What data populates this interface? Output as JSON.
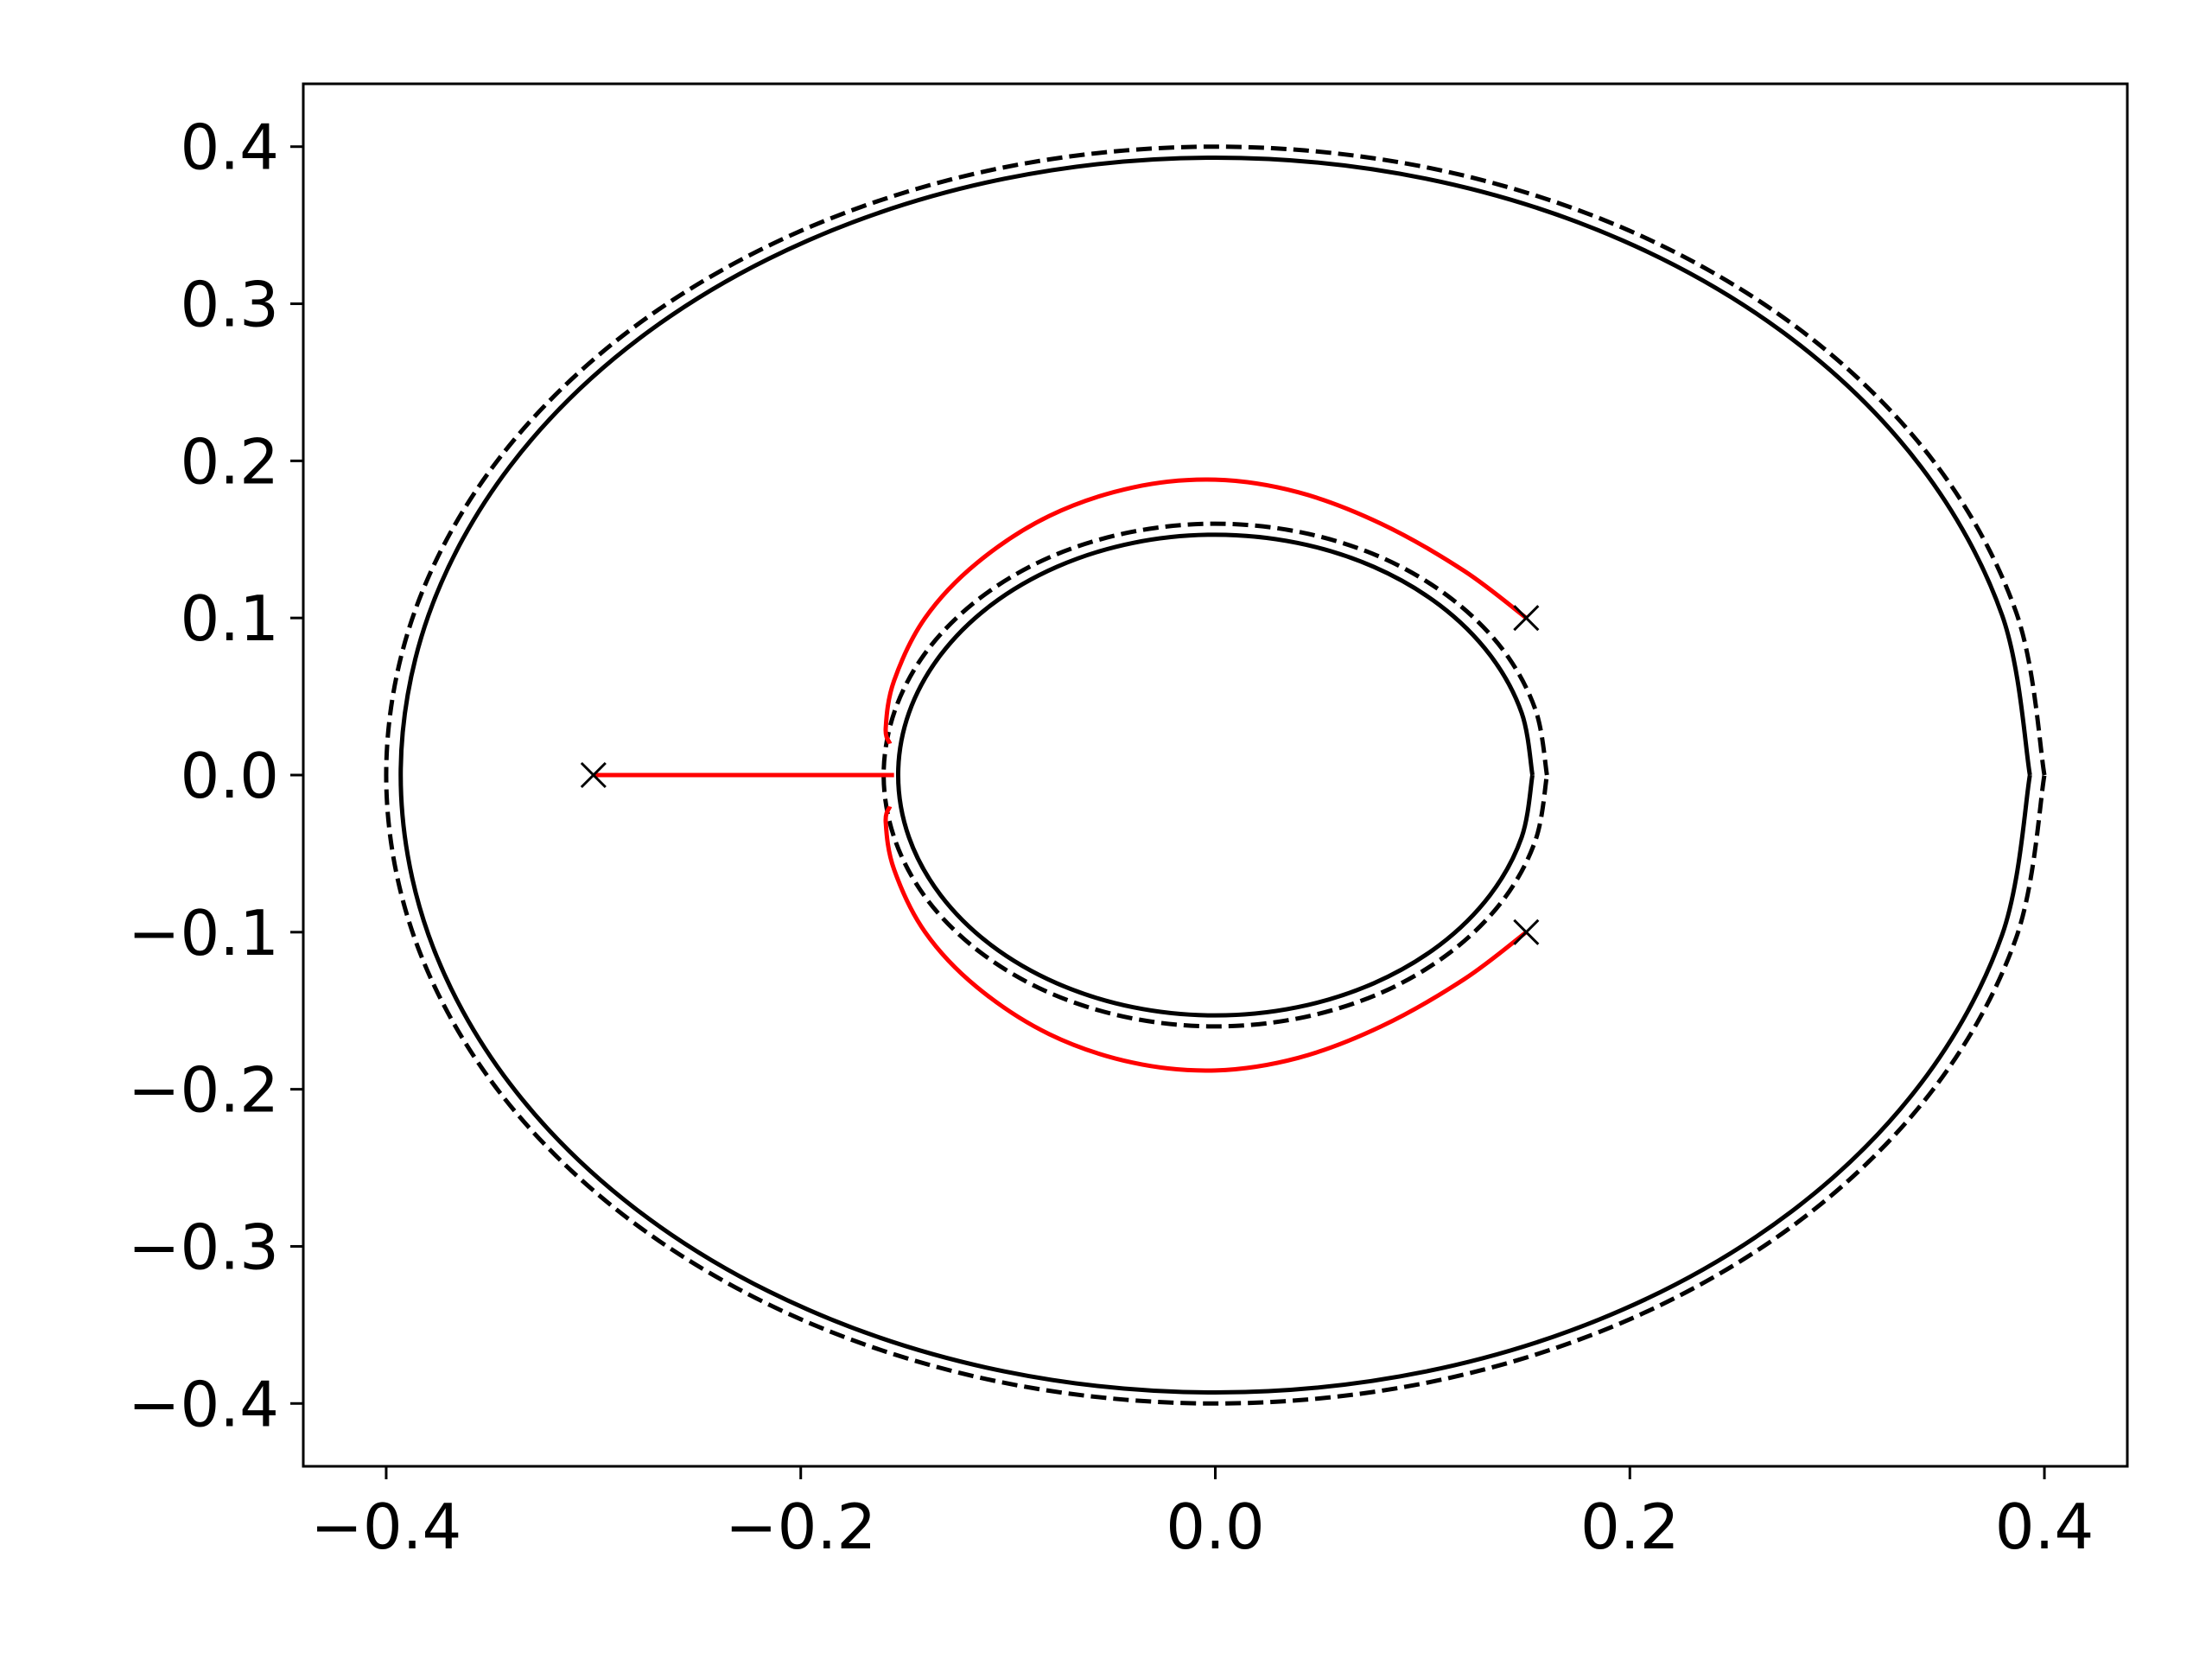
{
  "chart_data": {
    "type": "line",
    "xlim": [
      -0.44,
      0.44
    ],
    "ylim": [
      -0.44,
      0.44
    ],
    "xticks": [
      {
        "value": -0.4,
        "label": "−0.4"
      },
      {
        "value": -0.2,
        "label": "−0.2"
      },
      {
        "value": 0,
        "label": "0.0"
      },
      0.2,
      0.4
    ],
    "yticks": [
      {
        "value": -0.4,
        "label": "−0.4"
      },
      {
        "value": -0.3,
        "label": "−0.3"
      },
      {
        "value": -0.2,
        "label": "−0.2"
      },
      {
        "value": -0.1,
        "label": "−0.1"
      },
      {
        "value": 0,
        "label": "0.0"
      },
      0.1,
      0.2,
      0.3,
      0.4
    ],
    "series": [
      {
        "color": "#000000",
        "linestyle": "dashed",
        "x": [
          0.4,
          0.3864,
          0.3464,
          0.2828,
          0.2,
          0.1035,
          0,
          -0.1035,
          -0.2,
          -0.2828,
          -0.3464,
          -0.3864,
          -0.4,
          -0.3864,
          -0.3464,
          -0.2828,
          -0.2,
          -0.1035,
          0,
          0.1035,
          0.2,
          0.2828,
          0.3464,
          0.3864,
          0.4
        ],
        "values": [
          0,
          0.1035,
          0.2,
          0.2828,
          0.3464,
          0.3864,
          0.4,
          0.3864,
          0.3464,
          0.2828,
          0.2,
          0.1035,
          0,
          -0.1035,
          -0.2,
          -0.2828,
          -0.3464,
          -0.3864,
          -0.4,
          -0.3864,
          -0.3464,
          -0.2828,
          -0.2,
          -0.1035,
          0
        ]
      },
      {
        "color": "#000000",
        "linestyle": "solid",
        "x": [
          0.393,
          0.3796,
          0.3403,
          0.2779,
          0.1965,
          0.1017,
          0,
          -0.1017,
          -0.1965,
          -0.2779,
          -0.3403,
          -0.3796,
          -0.393,
          -0.3796,
          -0.3403,
          -0.2779,
          -0.1965,
          -0.1017,
          0,
          0.1017,
          0.1965,
          0.2779,
          0.3403,
          0.3796,
          0.393
        ],
        "values": [
          0,
          0.1017,
          0.1965,
          0.2779,
          0.3403,
          0.3796,
          0.393,
          0.3796,
          0.3403,
          0.2779,
          0.1965,
          0.1017,
          0,
          -0.1017,
          -0.1965,
          -0.2779,
          -0.3403,
          -0.3796,
          -0.393,
          -0.3796,
          -0.3403,
          -0.2779,
          -0.1965,
          -0.1017,
          0
        ]
      },
      {
        "color": "#000000",
        "linestyle": "dashed",
        "x": [
          0.16,
          0.1545,
          0.1386,
          0.1131,
          0.08,
          0.0414,
          0,
          -0.0414,
          -0.08,
          -0.1131,
          -0.1386,
          -0.1545,
          -0.16,
          -0.1545,
          -0.1386,
          -0.1131,
          -0.08,
          -0.0414,
          0,
          0.0414,
          0.08,
          0.1131,
          0.1386,
          0.1545,
          0.16
        ],
        "values": [
          0,
          0.0414,
          0.08,
          0.1131,
          0.1386,
          0.1545,
          0.16,
          0.1545,
          0.1386,
          0.1131,
          0.08,
          0.0414,
          0,
          -0.0414,
          -0.08,
          -0.1131,
          -0.1386,
          -0.1545,
          -0.16,
          -0.1545,
          -0.1386,
          -0.1131,
          -0.08,
          -0.0414,
          0
        ]
      },
      {
        "color": "#000000",
        "linestyle": "solid",
        "x": [
          0.153,
          0.1478,
          0.1325,
          0.1082,
          0.0765,
          0.0396,
          0,
          -0.0396,
          -0.0765,
          -0.1082,
          -0.1325,
          -0.1478,
          -0.153,
          -0.1478,
          -0.1325,
          -0.1082,
          -0.0765,
          -0.0396,
          0,
          0.0396,
          0.0765,
          0.1082,
          0.1325,
          0.1478,
          0.153
        ],
        "values": [
          0,
          0.0396,
          0.0765,
          0.1082,
          0.1325,
          0.1478,
          0.153,
          0.1478,
          0.1325,
          0.1082,
          0.0765,
          0.0396,
          0,
          -0.0396,
          -0.0765,
          -0.1082,
          -0.1325,
          -0.1478,
          -0.153,
          -0.1478,
          -0.1325,
          -0.1082,
          -0.0765,
          -0.0396,
          0
        ]
      },
      {
        "color": "#ff0000",
        "linestyle": "solid",
        "x": [
          0.15,
          0.12,
          0.08,
          0.04,
          0,
          -0.04,
          -0.08,
          -0.115,
          -0.14,
          -0.155,
          -0.159,
          -0.157
        ],
        "values": [
          0.1,
          0.13,
          0.16,
          0.18,
          0.188,
          0.183,
          0.165,
          0.135,
          0.1,
          0.06,
          0.03,
          0.02
        ]
      },
      {
        "color": "#ff0000",
        "linestyle": "solid",
        "x": [
          0.15,
          0.12,
          0.08,
          0.04,
          0,
          -0.04,
          -0.08,
          -0.115,
          -0.14,
          -0.155,
          -0.159,
          -0.157
        ],
        "values": [
          -0.1,
          -0.13,
          -0.16,
          -0.18,
          -0.188,
          -0.183,
          -0.165,
          -0.135,
          -0.1,
          -0.06,
          -0.03,
          -0.02
        ]
      },
      {
        "color": "#ff0000",
        "linestyle": "solid",
        "x": [
          -0.3,
          -0.155
        ],
        "values": [
          0,
          0
        ]
      },
      {
        "type": "scatter",
        "color": "#000000",
        "marker": "x",
        "x": [
          -0.3,
          0.15,
          0.15
        ],
        "values": [
          0,
          0.1,
          -0.1
        ]
      }
    ]
  }
}
